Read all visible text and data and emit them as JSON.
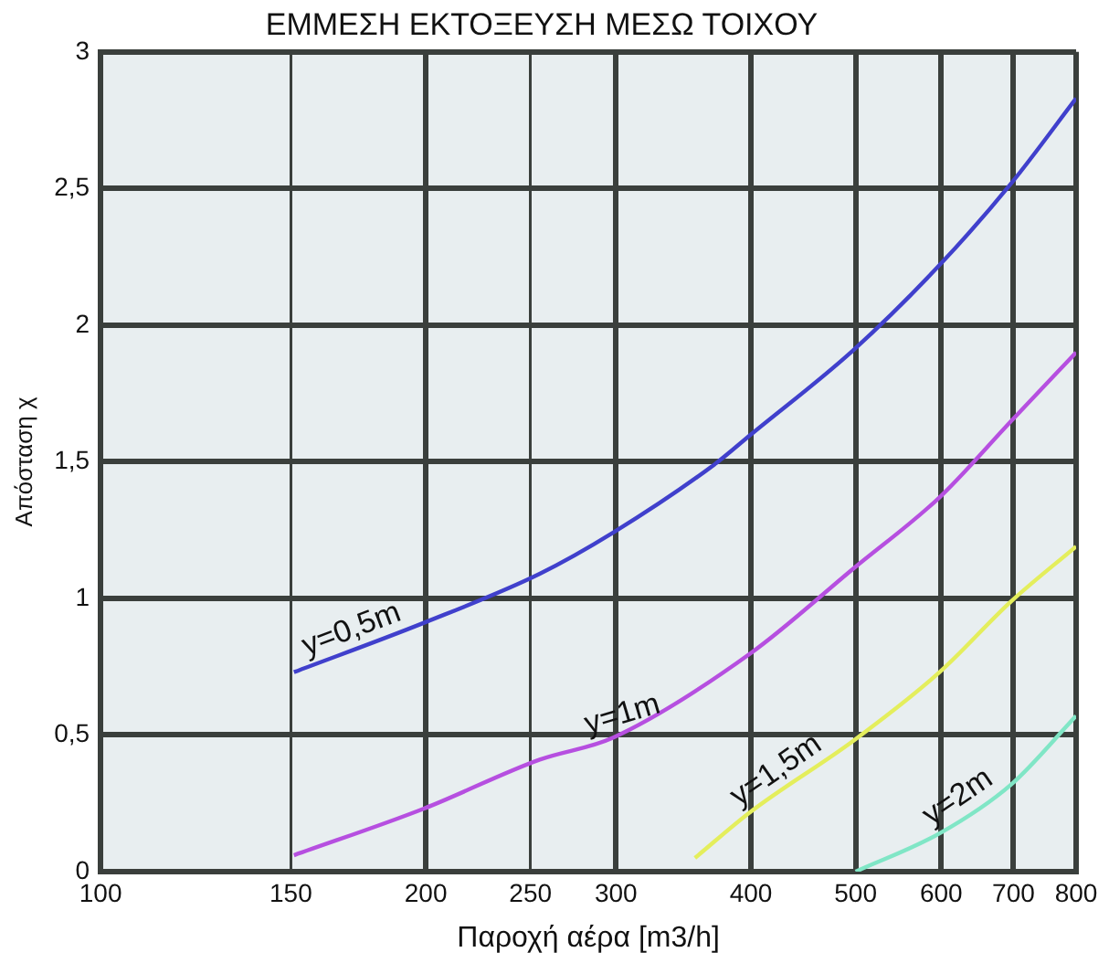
{
  "chart_data": {
    "type": "line",
    "title": "ΕΜΜΕΣΗ ΕΚΤΟΞΕΥΣΗ ΜΕΣΩ ΤΟΙΧΟΥ",
    "xlabel": "Παροχή αέρα [m3/h]",
    "ylabel": "Απόσταση χ",
    "log": "x",
    "grid": true,
    "legend": false,
    "marker": "none",
    "line_style": "solid",
    "xlim": [
      100,
      800
    ],
    "xticks": [
      100,
      150,
      200,
      250,
      300,
      400,
      500,
      600,
      700,
      800
    ],
    "ylim": [
      0,
      3
    ],
    "yticks": [
      0,
      {
        "value": 0.5,
        "label": "0,5"
      },
      1,
      {
        "value": 1.5,
        "label": "1,5"
      },
      2,
      {
        "value": 2.5,
        "label": "2,5"
      },
      3
    ],
    "series": [
      {
        "name": "y=0,5m",
        "color": "#4040cc",
        "x": [
          151,
          199,
          255,
          298,
          370,
          400,
          498,
          598,
          697,
          800
        ],
        "values": [
          0.73,
          0.91,
          1.09,
          1.24,
          1.49,
          1.6,
          1.91,
          2.22,
          2.52,
          2.83
        ]
      },
      {
        "name": "y=1m",
        "color": "#b64fe0",
        "x": [
          151,
          199,
          255,
          298,
          400,
          498,
          598,
          697,
          800
        ],
        "values": [
          0.06,
          0.23,
          0.41,
          0.49,
          0.8,
          1.11,
          1.37,
          1.65,
          1.9
        ]
      },
      {
        "name": "y=1,5m",
        "color": "#e4ee5c",
        "x": [
          355,
          400,
          498,
          598,
          697,
          800
        ],
        "values": [
          0.05,
          0.22,
          0.48,
          0.73,
          0.99,
          1.19
        ]
      },
      {
        "name": "y=2m",
        "color": "#80e6c6",
        "x": [
          500,
          598,
          697,
          800
        ],
        "values": [
          0,
          0.14,
          0.32,
          0.57
        ]
      }
    ]
  }
}
